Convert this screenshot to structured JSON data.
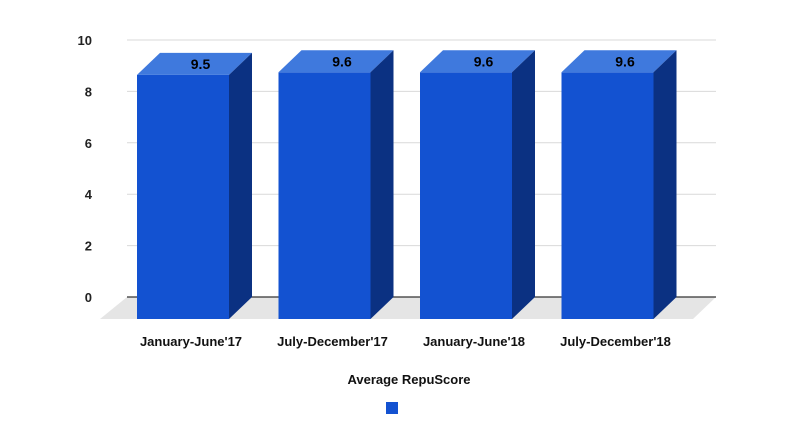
{
  "chart_data": {
    "type": "bar",
    "categories": [
      "January-June'17",
      "July-December'17",
      "January-June'18",
      "July-December'18"
    ],
    "values": [
      9.5,
      9.6,
      9.6,
      9.6
    ],
    "data_labels": [
      "9.5",
      "9.6",
      "9.6",
      "9.6"
    ],
    "title": "",
    "xlabel": "Average RepuScore",
    "ylabel": "",
    "ylim": [
      0,
      10
    ],
    "yticks": [
      "0",
      "2",
      "4",
      "6",
      "8",
      "10"
    ],
    "grid": true,
    "legend_placement": "bottom",
    "three_d": true,
    "colors": {
      "front": "#1352d1",
      "top": "#3f79dd",
      "side": "#0b3182",
      "floor": "#e5e5e5",
      "grid": "#d9d9d9",
      "legend": "#1352d1"
    }
  }
}
